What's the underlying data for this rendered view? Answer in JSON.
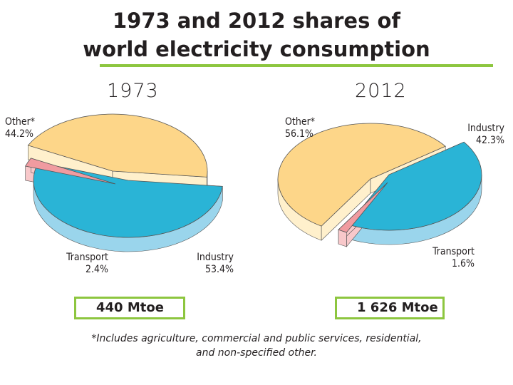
{
  "title_line1": "1973 and 2012 shares of",
  "title_line2": "world electricity consumption",
  "colors": {
    "industry": "#2ab4d6",
    "industry_side": "#9ad5ec",
    "transport": "#f09ba0",
    "transport_side": "#f8c8ca",
    "other": "#fdd689",
    "other_side": "#fff0cc",
    "rule": "#8dc63f"
  },
  "chart_data": [
    {
      "type": "pie",
      "title": "1973",
      "categories": [
        "Industry",
        "Transport",
        "Other*"
      ],
      "values": [
        53.4,
        2.4,
        44.2
      ],
      "value_labels": [
        "53.4%",
        "2.4%",
        "44.2%"
      ],
      "total": "440 Mtoe"
    },
    {
      "type": "pie",
      "title": "2012",
      "categories": [
        "Industry",
        "Transport",
        "Other*"
      ],
      "values": [
        42.3,
        1.6,
        56.1
      ],
      "value_labels": [
        "42.3%",
        "1.6%",
        "56.1%"
      ],
      "total": "1 626 Mtoe"
    }
  ],
  "footnote_line1": "*Includes agriculture, commercial and public services, residential,",
  "footnote_line2": "and non-specified other."
}
